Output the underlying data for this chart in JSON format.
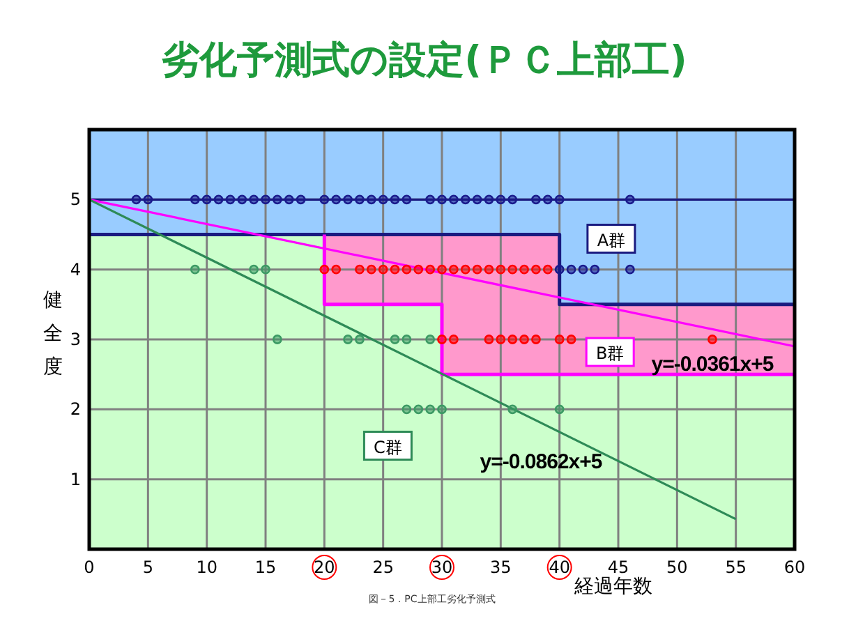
{
  "chart_data": {
    "type": "scatter",
    "title": "劣化予測式の設定(ＰＣ上部工)",
    "xlabel": "経過年数",
    "ylabel": "健全度",
    "xlim": [
      0,
      60
    ],
    "ylim": [
      0,
      6
    ],
    "xticks": [
      0,
      5,
      10,
      15,
      20,
      25,
      30,
      35,
      40,
      45,
      50,
      55,
      60
    ],
    "yticks": [
      1,
      2,
      3,
      4,
      5
    ],
    "grid": true,
    "stacked": true,
    "series": [
      {
        "type": "area",
        "color": "#ccffcc",
        "x": [
          0,
          20,
          20,
          30,
          30,
          40,
          40,
          60
        ],
        "values": [
          4.5,
          4.5,
          3.5,
          3.5,
          2.5,
          2.5,
          2.5,
          2.5
        ]
      },
      {
        "type": "area",
        "color": "#ff99cc",
        "x": [
          0,
          20,
          20,
          30,
          30,
          40,
          40,
          60
        ],
        "values": [
          0,
          0,
          1,
          1,
          2,
          2,
          1,
          1
        ]
      },
      {
        "type": "area",
        "color": "#99ccff",
        "x": [
          0,
          20,
          20,
          30,
          30,
          40,
          40,
          60
        ],
        "values": [
          1.5,
          1.5,
          1.5,
          1.5,
          1.5,
          1.5,
          2.5,
          2.5
        ]
      },
      {
        "type": "line",
        "color": "#1a1a80",
        "x": [
          0,
          60
        ],
        "values": [
          5,
          5
        ]
      },
      {
        "type": "line",
        "color": "#1a1a80",
        "x": [
          0,
          40,
          40,
          60
        ],
        "values": [
          4.5,
          4.5,
          3.5,
          3.5
        ]
      },
      {
        "type": "line",
        "color": "#ff00ff",
        "x": [
          20,
          20,
          30,
          30,
          60
        ],
        "values": [
          4.5,
          3.5,
          3.5,
          2.5,
          2.5
        ]
      },
      {
        "type": "line",
        "color": "#ff00ff",
        "x": [
          0,
          60
        ],
        "values": [
          5,
          2.9
        ]
      },
      {
        "type": "line",
        "color": "#2e8b57",
        "x": [
          0,
          55
        ],
        "values": [
          5,
          0.43
        ]
      },
      {
        "marker": "circle",
        "color": "#1a1a8c",
        "x": [
          4,
          5,
          9,
          10,
          11,
          12,
          13,
          14,
          15,
          16,
          17,
          18,
          20,
          21,
          22,
          23,
          24,
          25,
          26,
          27,
          29,
          30,
          31,
          32,
          33,
          34,
          35,
          36,
          38,
          39,
          40,
          46,
          40,
          41,
          42,
          43,
          46
        ],
        "values": [
          5,
          5,
          5,
          5,
          5,
          5,
          5,
          5,
          5,
          5,
          5,
          5,
          5,
          5,
          5,
          5,
          5,
          5,
          5,
          5,
          5,
          5,
          5,
          5,
          5,
          5,
          5,
          5,
          5,
          5,
          5,
          5,
          4,
          4,
          4,
          4,
          4
        ]
      },
      {
        "marker": "circle",
        "color": "#ff0000",
        "x": [
          20,
          21,
          23,
          24,
          25,
          26,
          27,
          28,
          29,
          30,
          31,
          32,
          33,
          34,
          35,
          36,
          37,
          38,
          39,
          30,
          31,
          34,
          35,
          36,
          37,
          38,
          40,
          41,
          53
        ],
        "values": [
          4,
          4,
          4,
          4,
          4,
          4,
          4,
          4,
          4,
          4,
          4,
          4,
          4,
          4,
          4,
          4,
          4,
          4,
          4,
          3,
          3,
          3,
          3,
          3,
          3,
          3,
          3,
          3,
          3
        ]
      },
      {
        "marker": "circle",
        "color": "#3c9a64",
        "x": [
          9,
          14,
          15,
          16,
          22,
          23,
          26,
          27,
          29,
          27,
          28,
          29,
          30,
          36,
          40
        ],
        "values": [
          4,
          4,
          4,
          3,
          3,
          3,
          3,
          3,
          3,
          2,
          2,
          2,
          2,
          2,
          2
        ]
      }
    ],
    "annotations": [
      {
        "text": "A群",
        "x": 44.4,
        "y": 4.44
      },
      {
        "text": "B群",
        "x": 44.3,
        "y": 2.82
      },
      {
        "text": "C群",
        "x": 25.4,
        "y": 1.48
      },
      "y=-0.0361x+5",
      "y=-0.0862x+5",
      "図－5．PC上部工劣化予測式"
    ]
  }
}
